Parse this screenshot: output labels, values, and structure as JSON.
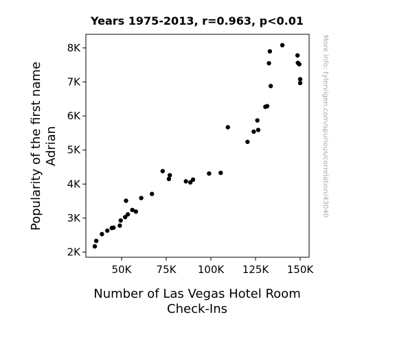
{
  "chart_data": {
    "type": "scatter",
    "title": "Years 1975-2013, r=0.963, p<0.01",
    "xlabel_lines": [
      "Number of Las Vegas Hotel Room",
      "Check-Ins"
    ],
    "ylabel_lines": [
      "Popularity of the first name",
      "Adrian"
    ],
    "watermark": "More info: tylervigen.com/spurious/correlation/43040",
    "xlim": [
      30000,
      155000
    ],
    "ylim": [
      1850,
      8400
    ],
    "grid": false,
    "legend": "none",
    "x_ticks": [
      {
        "value": 50000,
        "label": "50K"
      },
      {
        "value": 75000,
        "label": "75K"
      },
      {
        "value": 100000,
        "label": "100K"
      },
      {
        "value": 125000,
        "label": "125K"
      },
      {
        "value": 150000,
        "label": "150K"
      }
    ],
    "y_ticks": [
      {
        "value": 2000,
        "label": "2K"
      },
      {
        "value": 3000,
        "label": "3K"
      },
      {
        "value": 4000,
        "label": "4K"
      },
      {
        "value": 5000,
        "label": "5K"
      },
      {
        "value": 6000,
        "label": "6K"
      },
      {
        "value": 7000,
        "label": "7K"
      },
      {
        "value": 8000,
        "label": "8K"
      }
    ],
    "marker_color": "#000000",
    "points": [
      {
        "x": 35000,
        "y": 2170
      },
      {
        "x": 35800,
        "y": 2330
      },
      {
        "x": 39000,
        "y": 2530
      },
      {
        "x": 42000,
        "y": 2630
      },
      {
        "x": 44500,
        "y": 2710
      },
      {
        "x": 45500,
        "y": 2720
      },
      {
        "x": 49000,
        "y": 2780
      },
      {
        "x": 49500,
        "y": 2930
      },
      {
        "x": 52000,
        "y": 3030
      },
      {
        "x": 52500,
        "y": 3510
      },
      {
        "x": 53500,
        "y": 3110
      },
      {
        "x": 56000,
        "y": 3240
      },
      {
        "x": 58000,
        "y": 3190
      },
      {
        "x": 61000,
        "y": 3590
      },
      {
        "x": 67000,
        "y": 3710
      },
      {
        "x": 73000,
        "y": 4380
      },
      {
        "x": 76500,
        "y": 4150
      },
      {
        "x": 77000,
        "y": 4260
      },
      {
        "x": 86000,
        "y": 4080
      },
      {
        "x": 88500,
        "y": 4050
      },
      {
        "x": 90000,
        "y": 4130
      },
      {
        "x": 99000,
        "y": 4310
      },
      {
        "x": 105500,
        "y": 4330
      },
      {
        "x": 109500,
        "y": 5670
      },
      {
        "x": 120500,
        "y": 5240
      },
      {
        "x": 124000,
        "y": 5540
      },
      {
        "x": 126000,
        "y": 5870
      },
      {
        "x": 126500,
        "y": 5590
      },
      {
        "x": 130500,
        "y": 6270
      },
      {
        "x": 131500,
        "y": 6290
      },
      {
        "x": 132500,
        "y": 7550
      },
      {
        "x": 133000,
        "y": 7900
      },
      {
        "x": 133500,
        "y": 6880
      },
      {
        "x": 140000,
        "y": 8080
      },
      {
        "x": 148500,
        "y": 7780
      },
      {
        "x": 148700,
        "y": 7560
      },
      {
        "x": 149500,
        "y": 7520
      },
      {
        "x": 150000,
        "y": 7080
      },
      {
        "x": 150000,
        "y": 6970
      }
    ]
  }
}
